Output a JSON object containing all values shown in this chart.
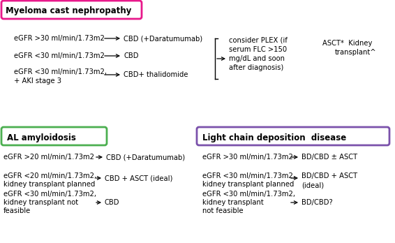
{
  "bg_color": "#ffffff",
  "title1": "Myeloma cast nephropathy",
  "title1_color": "#e8198b",
  "title2": "AL amyloidosis",
  "title2_color": "#4caf50",
  "title3": "Light chain deposition  disease",
  "title3_color": "#7b52ab",
  "fs": 7.2,
  "fs_title": 8.5
}
